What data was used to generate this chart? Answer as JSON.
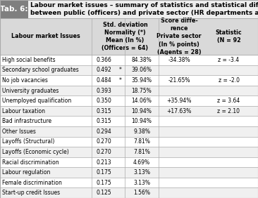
{
  "title_tab": "Tab. 6:",
  "title_text": "Labour market issues – summary of statistics and statistical differences\nbetween public (officers) and private sector (HR departments and agencies)",
  "rows": [
    [
      "High social benefits",
      "0.366",
      "",
      "84.38%",
      "-34.38%",
      "z = -3.4"
    ],
    [
      "Secondary school graduates",
      "0.492",
      "*",
      "39.06%",
      "",
      ""
    ],
    [
      "No job vacancies",
      "0.484",
      "*",
      "35.94%",
      "-21.65%",
      "z = -2.0"
    ],
    [
      "University graduates",
      "0.393",
      "",
      "18.75%",
      "",
      ""
    ],
    [
      "Unemployed qualification",
      "0.350",
      "",
      "14.06%",
      "+35.94%",
      "z = 3.64"
    ],
    [
      "Labour taxation",
      "0.315",
      "",
      "10.94%",
      "+17.63%",
      "z = 2.10"
    ],
    [
      "Bad infrastructure",
      "0.315",
      "",
      "10.94%",
      "",
      ""
    ],
    [
      "Other Issues",
      "0.294",
      "",
      "9.38%",
      "",
      ""
    ],
    [
      "Layoffs (Structural)",
      "0.270",
      "",
      "7.81%",
      "",
      ""
    ],
    [
      "Layoffs (Economic cycle)",
      "0.270",
      "",
      "7.81%",
      "",
      ""
    ],
    [
      "Racial discrimination",
      "0.213",
      "",
      "4.69%",
      "",
      ""
    ],
    [
      "Labour regulation",
      "0.175",
      "",
      "3.13%",
      "",
      ""
    ],
    [
      "Female discrimination",
      "0.175",
      "",
      "3.13%",
      "",
      ""
    ],
    [
      "Start-up credit Issues",
      "0.125",
      "",
      "1.56%",
      "",
      ""
    ]
  ],
  "header_col0": "Labour market Issues",
  "header_col1": "Std. deviation\nNormality (*)\nMean (In %)\n(Officers = 64)",
  "header_col3": "Score diffe-\nrence\nPrivate sector\n(In % points)\n(Agents = 28)",
  "header_col4": "Statistic\n(N = 92",
  "tab_bg": "#7f7f7f",
  "tab_text_color": "#ffffff",
  "title_bg": "#eeeeee",
  "header_bg": "#d9d9d9",
  "row_bg_even": "#ffffff",
  "row_bg_odd": "#f0f0f0",
  "border_color": "#aaaaaa",
  "font_size_title": 6.5,
  "font_size_tab": 7.5,
  "font_size_header": 5.8,
  "font_size_row": 5.5
}
